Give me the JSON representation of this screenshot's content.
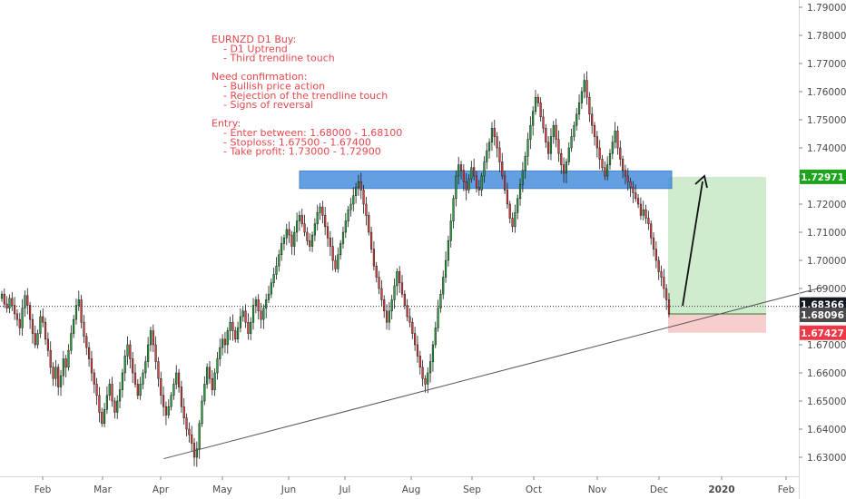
{
  "chart_data": {
    "type": "candlestick",
    "symbol": "EURNZD",
    "timeframe": "D1",
    "ylim": [
      1.625,
      1.795
    ],
    "y_ticks": [
      "1.79000",
      "1.78000",
      "1.77000",
      "1.76000",
      "1.75000",
      "1.74000",
      "1.73000",
      "1.72000",
      "1.71000",
      "1.70000",
      "1.69000",
      "1.68000",
      "1.67000",
      "1.66000",
      "1.65000",
      "1.64000",
      "1.63000"
    ],
    "x_ticks": [
      "Feb",
      "Mar",
      "Apr",
      "May",
      "Jun",
      "Jul",
      "Aug",
      "Sep",
      "Oct",
      "Nov",
      "Dec",
      "2020",
      "Feb"
    ],
    "price_labels": [
      {
        "text": "1.72971",
        "value": 1.72971,
        "color": "#1aa51a"
      },
      {
        "text": "1.68366",
        "value": 1.68366,
        "color": "#131722"
      },
      {
        "text": "1.68096",
        "value": 1.68096,
        "color": "#4a4a4a"
      },
      {
        "text": "1.67427",
        "value": 1.67427,
        "color": "#f23645"
      }
    ],
    "annotation_lines": [
      "EURNZD D1 Buy:",
      "    - D1 Uptrend",
      "    - Third trendline touch",
      "",
      "Need confirmation:",
      "    - Bullish price action",
      "    - Rejection of the trendline touch",
      "    - Signs of reversal",
      "",
      "Entry:",
      "    - Enter between: 1.68000 - 1.68100",
      "    - Stoploss: 1.67500 - 1.67400",
      "    - Take profit: 1.73000 - 1.72900"
    ],
    "resistance_zone": [
      1.7275,
      1.7305
    ],
    "trendline": {
      "start_price": 1.6295,
      "start_month_index": 2.05,
      "end_price": 1.6905,
      "end_month_index": 12.6
    },
    "position": {
      "entry": 1.68096,
      "target": 1.72971,
      "stop": 1.67427
    },
    "current_price": 1.68366,
    "colors": {
      "up": "#22a83a",
      "down": "#ea3c3c",
      "zone": "#4a8fdc",
      "profit": "#bfe6bf",
      "loss": "#f6c4c6",
      "annotation": "#e5484d"
    },
    "closes": [
      1.688,
      1.6845,
      1.683,
      1.6865,
      1.684,
      1.681,
      1.679,
      1.676,
      1.683,
      1.6875,
      1.684,
      1.679,
      1.674,
      1.67,
      1.674,
      1.68,
      1.678,
      1.672,
      1.668,
      1.662,
      1.658,
      1.662,
      1.655,
      1.659,
      1.665,
      1.662,
      1.668,
      1.674,
      1.679,
      1.684,
      1.686,
      1.678,
      1.673,
      1.669,
      1.665,
      1.66,
      1.656,
      1.652,
      1.646,
      1.642,
      1.647,
      1.652,
      1.656,
      1.65,
      1.646,
      1.65,
      1.654,
      1.66,
      1.666,
      1.67,
      1.665,
      1.66,
      1.656,
      1.652,
      1.656,
      1.66,
      1.664,
      1.67,
      1.675,
      1.67,
      1.664,
      1.658,
      1.652,
      1.648,
      1.645,
      1.648,
      1.652,
      1.656,
      1.66,
      1.655,
      1.648,
      1.644,
      1.64,
      1.638,
      1.635,
      1.63,
      1.633,
      1.642,
      1.65,
      1.656,
      1.662,
      1.658,
      1.654,
      1.66,
      1.665,
      1.669,
      1.672,
      1.67,
      1.675,
      1.678,
      1.675,
      1.672,
      1.676,
      1.68,
      1.682,
      1.678,
      1.674,
      1.678,
      1.684,
      1.686,
      1.682,
      1.679,
      1.683,
      1.686,
      1.688,
      1.692,
      1.695,
      1.698,
      1.702,
      1.706,
      1.708,
      1.711,
      1.709,
      1.705,
      1.71,
      1.714,
      1.716,
      1.713,
      1.71,
      1.707,
      1.705,
      1.709,
      1.713,
      1.717,
      1.719,
      1.716,
      1.712,
      1.708,
      1.705,
      1.7,
      1.697,
      1.702,
      1.706,
      1.71,
      1.714,
      1.718,
      1.72,
      1.723,
      1.726,
      1.728,
      1.725,
      1.72,
      1.716,
      1.71,
      1.704,
      1.698,
      1.694,
      1.69,
      1.686,
      1.682,
      1.678,
      1.682,
      1.686,
      1.691,
      1.696,
      1.692,
      1.688,
      1.684,
      1.68,
      1.678,
      1.674,
      1.67,
      1.666,
      1.662,
      1.658,
      1.656,
      1.66,
      1.664,
      1.67,
      1.676,
      1.683,
      1.688,
      1.694,
      1.7,
      1.707,
      1.714,
      1.722,
      1.73,
      1.734,
      1.732,
      1.728,
      1.725,
      1.729,
      1.733,
      1.73,
      1.726,
      1.725,
      1.73,
      1.735,
      1.739,
      1.742,
      1.747,
      1.744,
      1.74,
      1.735,
      1.73,
      1.725,
      1.72,
      1.715,
      1.712,
      1.717,
      1.722,
      1.727,
      1.732,
      1.737,
      1.743,
      1.748,
      1.753,
      1.758,
      1.756,
      1.751,
      1.747,
      1.742,
      1.738,
      1.744,
      1.748,
      1.743,
      1.738,
      1.734,
      1.731,
      1.735,
      1.74,
      1.744,
      1.748,
      1.752,
      1.756,
      1.76,
      1.764,
      1.758,
      1.752,
      1.748,
      1.744,
      1.74,
      1.736,
      1.733,
      1.73,
      1.734,
      1.738,
      1.742,
      1.746,
      1.74,
      1.736,
      1.732,
      1.73,
      1.728,
      1.726,
      1.724,
      1.722,
      1.72,
      1.716,
      1.718,
      1.715,
      1.713,
      1.708,
      1.704,
      1.7,
      1.696,
      1.694,
      1.69,
      1.686,
      1.681
    ]
  }
}
